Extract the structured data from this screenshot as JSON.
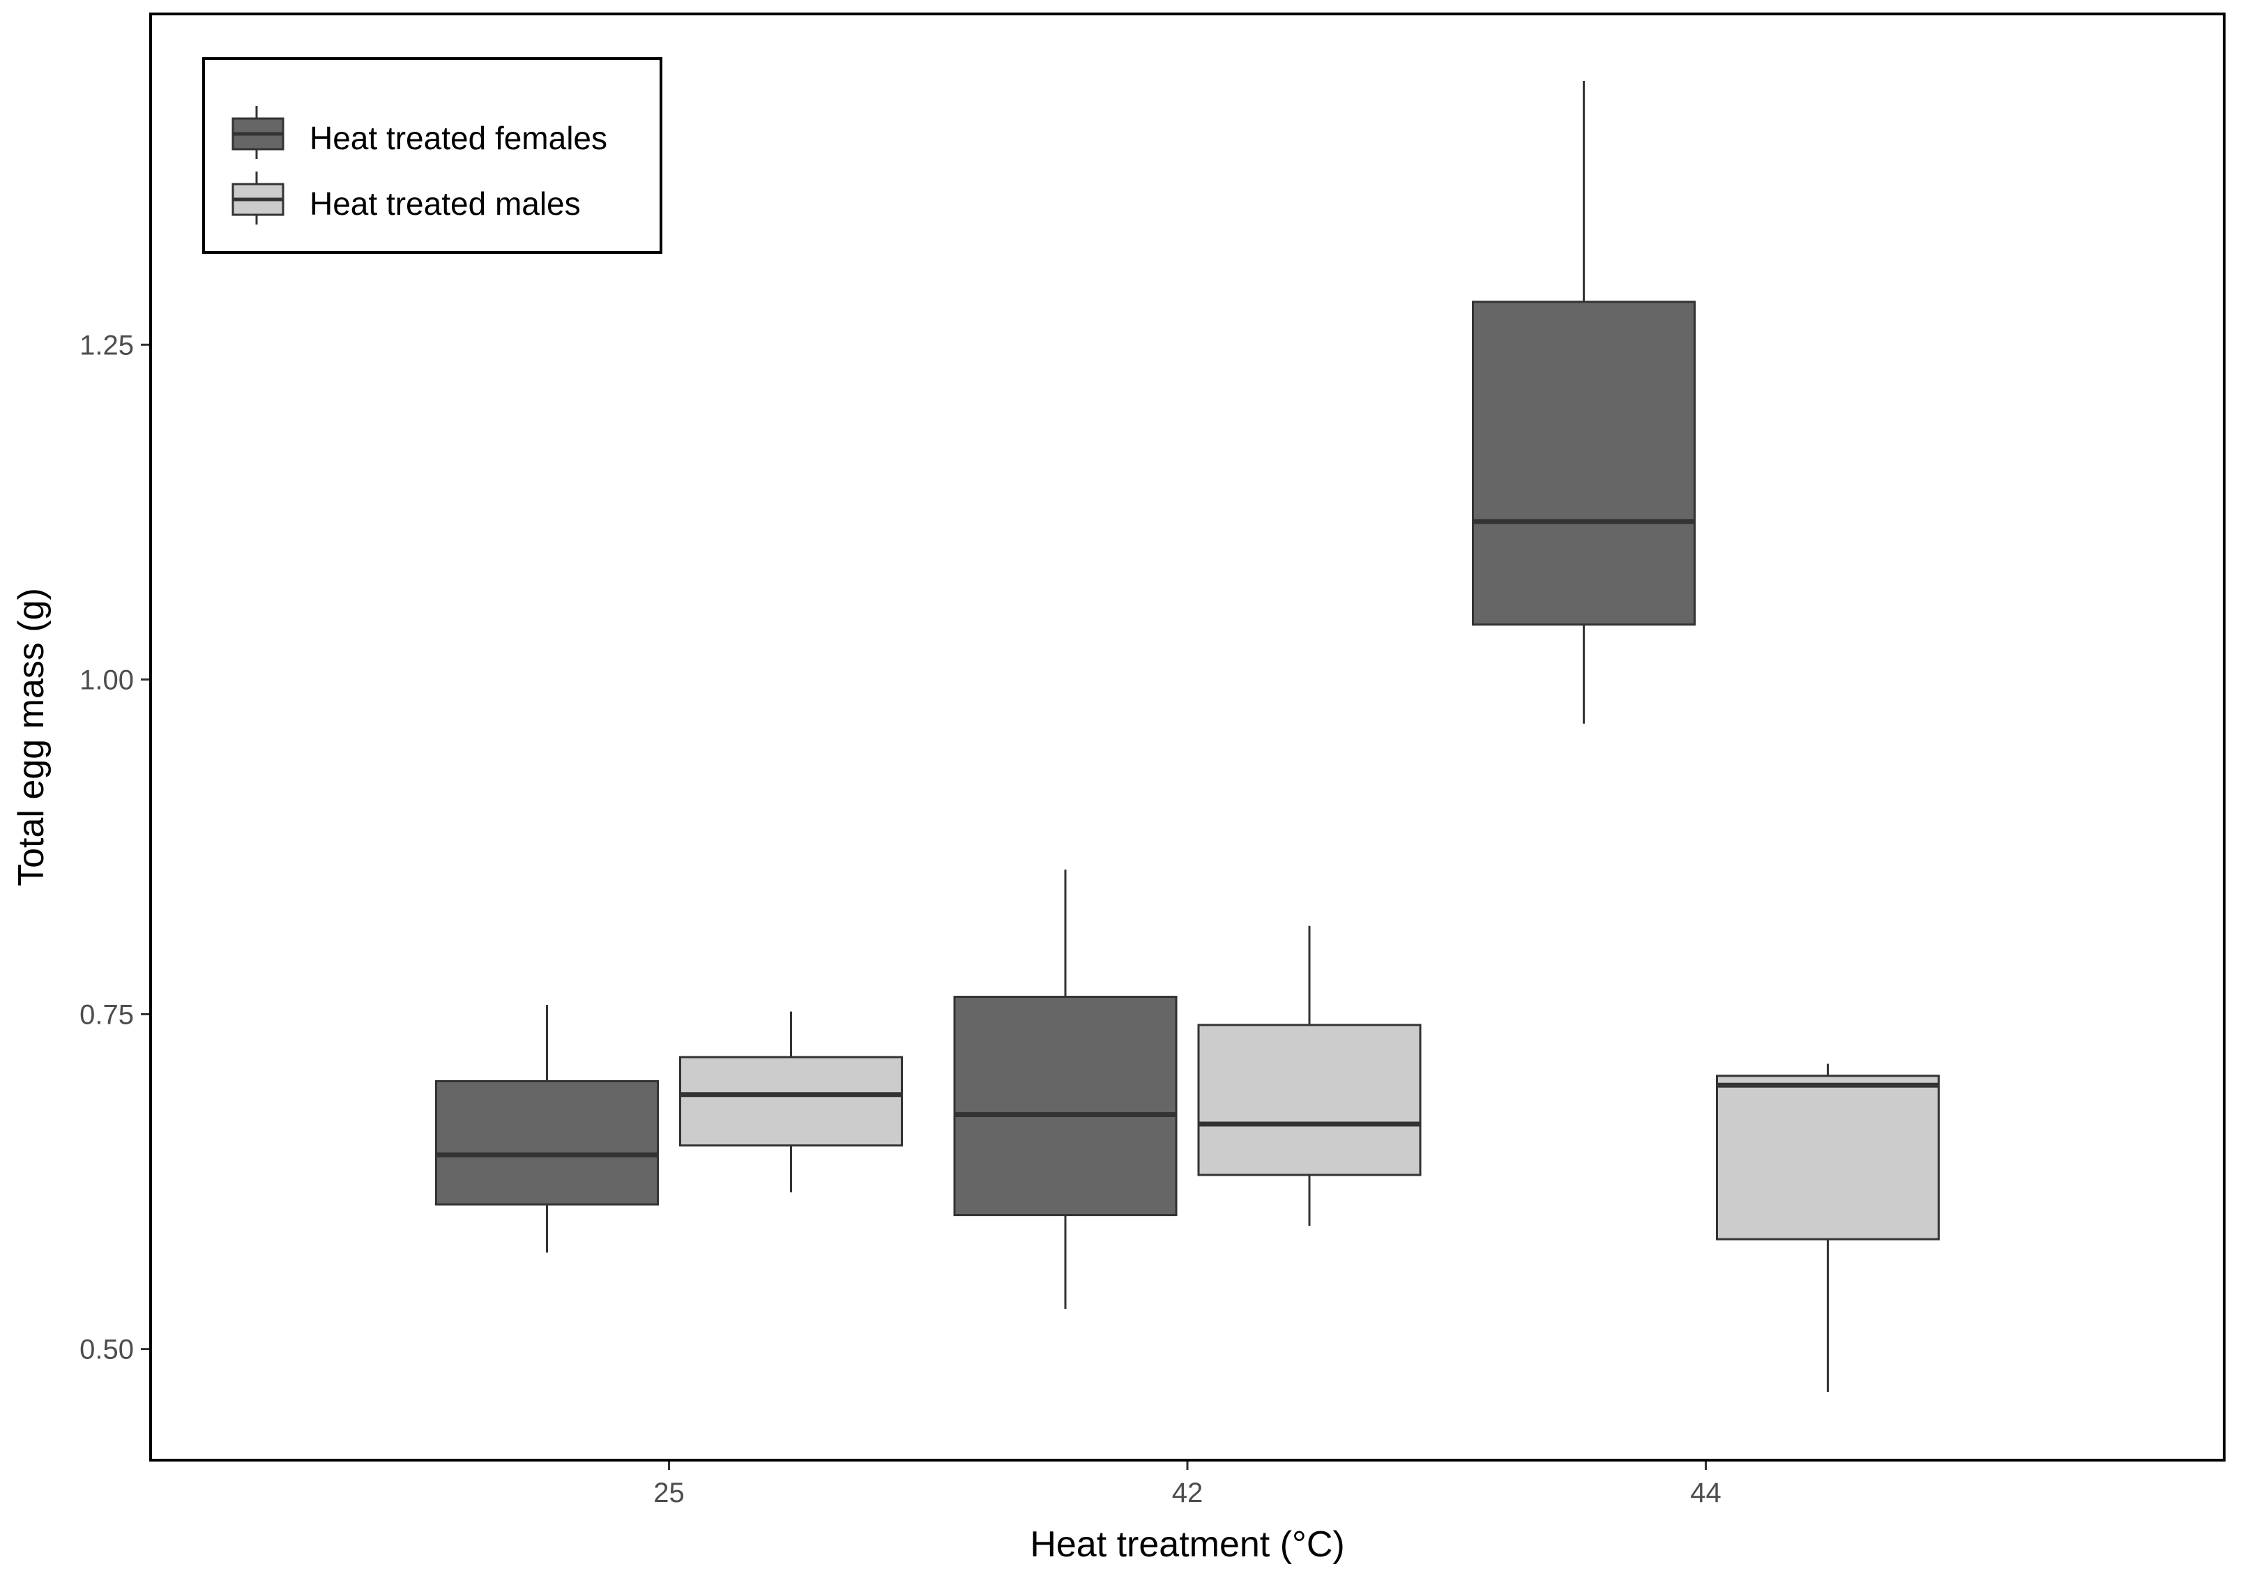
{
  "chart_data": {
    "type": "boxplot",
    "title": "",
    "xlabel": "Heat treatment (°C)",
    "ylabel": "Total egg mass (g)",
    "categories": [
      "25",
      "42",
      "44"
    ],
    "ylim": [
      0.417,
      1.497
    ],
    "yticks": [
      "0.50",
      "0.75",
      "1.00",
      "1.25"
    ],
    "ytick_values": [
      0.5,
      0.75,
      1.0,
      1.25
    ],
    "grid": false,
    "legend_position": "top-left",
    "series": [
      {
        "name": "Heat treated females",
        "color": "#666666",
        "boxes": [
          {
            "category": "25",
            "min": 0.572,
            "q1": 0.608,
            "median": 0.645,
            "q3": 0.7,
            "max": 0.757
          },
          {
            "category": "42",
            "min": 0.53,
            "q1": 0.6,
            "median": 0.675,
            "q3": 0.763,
            "max": 0.858
          },
          {
            "category": "44",
            "min": 0.967,
            "q1": 1.041,
            "median": 1.118,
            "q3": 1.282,
            "max": 1.447
          }
        ]
      },
      {
        "name": "Heat treated males",
        "color": "#cccccc",
        "boxes": [
          {
            "category": "25",
            "min": 0.617,
            "q1": 0.652,
            "median": 0.69,
            "q3": 0.718,
            "max": 0.752
          },
          {
            "category": "42",
            "min": 0.592,
            "q1": 0.63,
            "median": 0.668,
            "q3": 0.742,
            "max": 0.816
          },
          {
            "category": "44",
            "min": 0.468,
            "q1": 0.582,
            "median": 0.697,
            "q3": 0.704,
            "max": 0.713
          }
        ]
      }
    ]
  }
}
